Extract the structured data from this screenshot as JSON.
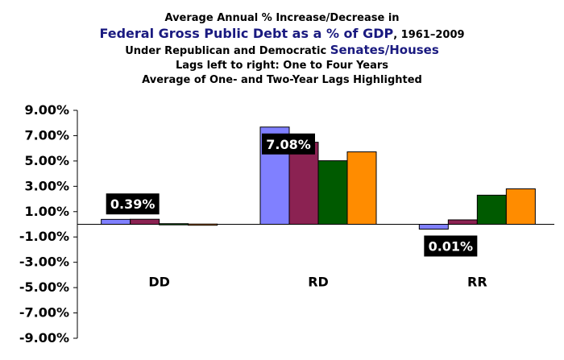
{
  "header": {
    "line1": "Average Annual % Increase/Decrease in",
    "line2_main": "Federal Gross Public Debt as a % of GDP",
    "line2_suffix": ", 1961–2009",
    "line3_prefix": "Under Republican and Democratic ",
    "line3_highlight": "Senates/Houses",
    "line4": "Lags left to right: One to Four Years",
    "line5": "Average of One- and Two-Year Lags Highlighted"
  },
  "colors": {
    "lag1": "#8080ff",
    "lag2": "#8b2252",
    "lag3": "#005a00",
    "lag4": "#ff8c00",
    "title_accent": "#1a1a80",
    "annotation_bg": "#000000",
    "annotation_text": "#ffffff"
  },
  "chart_data": {
    "type": "bar",
    "categories": [
      "DD",
      "RD",
      "RR"
    ],
    "series": [
      {
        "values": [
          0.39,
          7.68,
          -0.38
        ]
      },
      {
        "values": [
          0.4,
          6.48,
          0.35
        ]
      },
      {
        "values": [
          0.05,
          5.02,
          2.3
        ]
      },
      {
        "values": [
          0.02,
          5.72,
          2.8
        ]
      }
    ],
    "ylim": [
      -9,
      9
    ],
    "yticks": [
      "9.00%",
      "7.00%",
      "5.00%",
      "3.00%",
      "1.00%",
      "-1.00%",
      "-3.00%",
      "-5.00%",
      "-7.00%",
      "-9.00%"
    ],
    "ytick_values": [
      9,
      7,
      5,
      3,
      1,
      -1,
      -3,
      -5,
      -7,
      -9
    ],
    "annotations": [
      {
        "category": "DD",
        "text": "0.39%"
      },
      {
        "category": "RD",
        "text": "7.08%"
      },
      {
        "category": "RR",
        "text": "0.01%"
      }
    ],
    "grid": false,
    "legend": "none"
  }
}
